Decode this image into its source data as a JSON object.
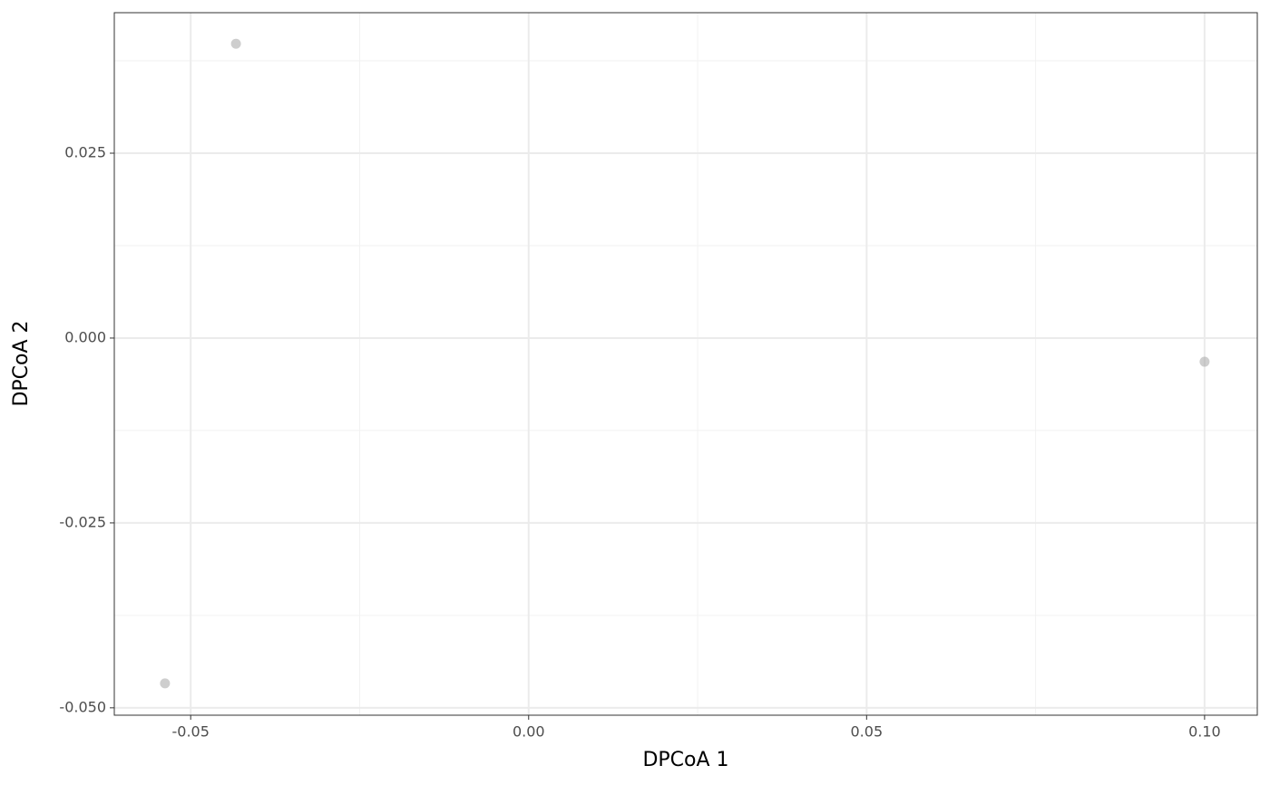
{
  "chart_data": {
    "type": "scatter",
    "x_label": "DPCoA 1",
    "y_label": "DPCoA 2",
    "x": [
      -0.0433,
      0.1,
      -0.0538
    ],
    "values": [
      0.0398,
      -0.0032,
      -0.0467
    ],
    "color": "#a6a6a6",
    "xlim": [
      -0.0613,
      0.1078
    ],
    "ylim": [
      -0.051,
      0.044
    ],
    "xticks": [
      {
        "value": -0.05,
        "label": "-0.05"
      },
      {
        "value": 0,
        "label": "0.00"
      },
      {
        "value": 0.05,
        "label": "0.05"
      },
      {
        "value": 0.1,
        "label": "0.10"
      }
    ],
    "yticks": [
      {
        "value": -0.05,
        "label": "-0.050"
      },
      {
        "value": -0.025,
        "label": "-0.025"
      },
      {
        "value": 0,
        "label": "0.000"
      },
      {
        "value": 0.025,
        "label": "0.025"
      }
    ],
    "grid": true
  }
}
